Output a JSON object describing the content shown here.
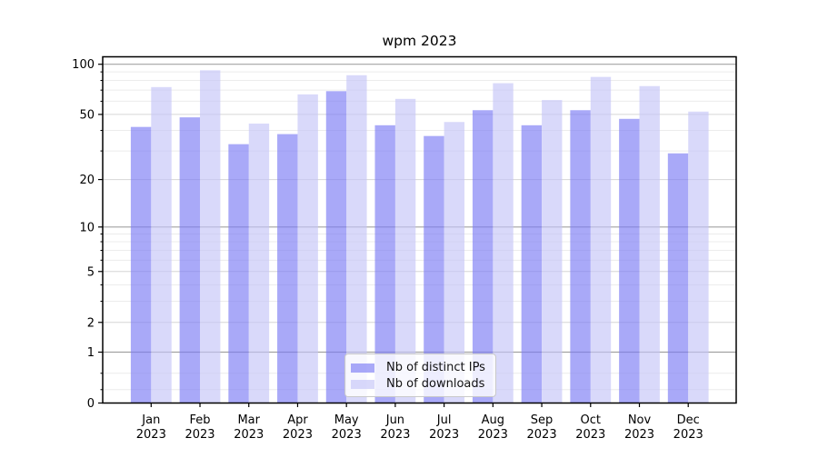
{
  "chart_data": {
    "type": "bar",
    "title": "wpm 2023",
    "categories": [
      "Jan",
      "Feb",
      "Mar",
      "Apr",
      "May",
      "Jun",
      "Jul",
      "Aug",
      "Sep",
      "Oct",
      "Nov",
      "Dec"
    ],
    "x_tick_second_line": "2023",
    "series": [
      {
        "name": "Nb of distinct IPs",
        "color": "#7b7bf4",
        "opacity": 0.65,
        "values": [
          42,
          48,
          33,
          38,
          69,
          43,
          37,
          53,
          43,
          53,
          47,
          29
        ]
      },
      {
        "name": "Nb of downloads",
        "color": "#c4c4f7",
        "opacity": 0.65,
        "values": [
          73,
          92,
          44,
          66,
          86,
          62,
          45,
          77,
          61,
          84,
          74,
          52
        ]
      }
    ],
    "y_axis": {
      "scale": "symlog",
      "range": [
        0,
        100
      ],
      "major_ticks": [
        0,
        1,
        2,
        5,
        10,
        20,
        50,
        100
      ],
      "tick_labels": [
        "0",
        "1",
        "2",
        "5",
        "10",
        "20",
        "50",
        "100"
      ],
      "minor_ticks": [
        0.2,
        0.5,
        3,
        4,
        6,
        7,
        8,
        9,
        30,
        40,
        60,
        70,
        80,
        90
      ]
    },
    "legend_position": "lower center inside",
    "grid": true,
    "colors": {
      "decade_gridline": "#a2a2a2",
      "major_gridline": "#d6d6d6",
      "minor_gridline": "#ececec",
      "axis": "#000000",
      "background": "#ffffff"
    }
  }
}
